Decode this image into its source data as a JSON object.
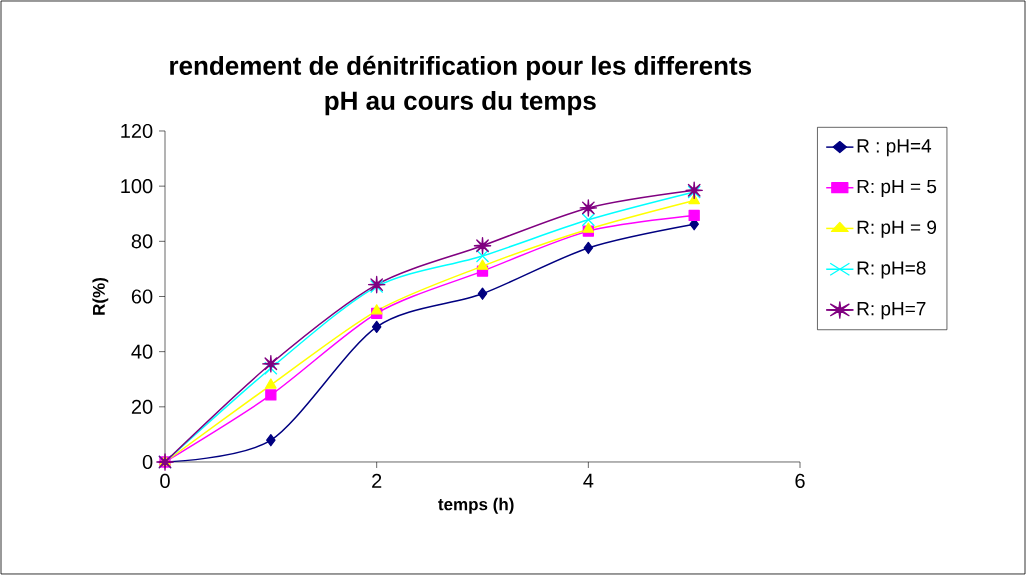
{
  "chart_data": {
    "type": "line",
    "title": "rendement de dénitrification pour les differents pH au cours du temps",
    "xlabel": "temps (h)",
    "ylabel": "R(%)",
    "x": [
      0,
      1,
      2,
      3,
      4,
      5
    ],
    "series": [
      {
        "name": "R : pH=4",
        "color": "#000080",
        "marker": "diamond",
        "values": [
          0,
          7.9,
          49,
          61,
          77.6,
          86.2
        ]
      },
      {
        "name": "R: pH = 5",
        "color": "#ff00ff",
        "marker": "square",
        "values": [
          0,
          24.3,
          53.9,
          69.2,
          83.7,
          89.4
        ]
      },
      {
        "name": "R: pH = 9",
        "color": "#ffff00",
        "marker": "triangle",
        "values": [
          0,
          27.9,
          54.8,
          71,
          84.4,
          94.8
        ]
      },
      {
        "name": "R: pH=8",
        "color": "#00ffff",
        "marker": "cross",
        "values": [
          0,
          34,
          63.6,
          74.7,
          87.8,
          97.9
        ]
      },
      {
        "name": "R: pH=7",
        "color": "#800080",
        "marker": "star",
        "values": [
          0,
          35.6,
          64.3,
          78.4,
          92.1,
          98.5
        ]
      }
    ],
    "xlim": [
      0,
      6
    ],
    "ylim": [
      0,
      120
    ],
    "xticks": [
      0,
      2,
      4,
      6
    ],
    "yticks": [
      0,
      20,
      40,
      60,
      80,
      100,
      120
    ],
    "grid": false,
    "legend": "right",
    "line_style": "solid"
  }
}
